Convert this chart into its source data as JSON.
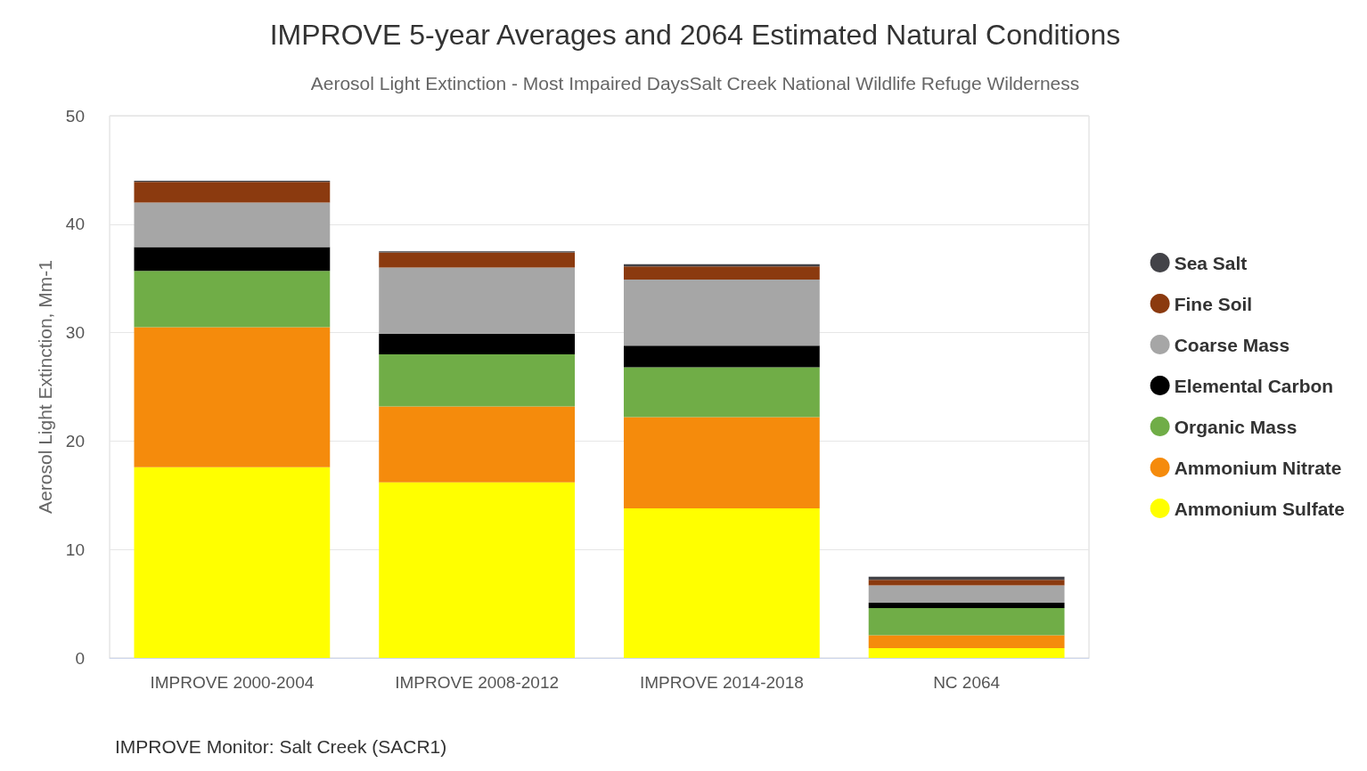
{
  "chart_data": {
    "type": "bar",
    "stacked": true,
    "title": "IMPROVE 5-year Averages and 2064 Estimated Natural Conditions",
    "subtitle": "Aerosol Light Extinction - Most Impaired DaysSalt Creek National Wildlife Refuge Wilderness",
    "ylabel": "Aerosol Light Extinction, Mm-1",
    "categories": [
      "IMPROVE 2000-2004",
      "IMPROVE 2008-2012",
      "IMPROVE 2014-2018",
      "NC 2064"
    ],
    "series": [
      {
        "name": "Ammonium Sulfate",
        "color": "#ffff00",
        "values": [
          17.6,
          16.2,
          13.8,
          0.9
        ]
      },
      {
        "name": "Ammonium Nitrate",
        "color": "#f58b0c",
        "values": [
          12.9,
          7.0,
          8.4,
          1.2
        ]
      },
      {
        "name": "Organic Mass",
        "color": "#70ad47",
        "values": [
          5.2,
          4.8,
          4.6,
          2.5
        ]
      },
      {
        "name": "Elemental Carbon",
        "color": "#000000",
        "values": [
          2.2,
          1.9,
          2.0,
          0.5
        ]
      },
      {
        "name": "Coarse Mass",
        "color": "#a6a6a6",
        "values": [
          4.1,
          6.1,
          6.1,
          1.6
        ]
      },
      {
        "name": "Fine Soil",
        "color": "#8b3a0f",
        "values": [
          1.9,
          1.4,
          1.2,
          0.5
        ]
      },
      {
        "name": "Sea Salt",
        "color": "#434348",
        "values": [
          0.1,
          0.1,
          0.2,
          0.3
        ]
      }
    ],
    "ylim": [
      0,
      50
    ],
    "yticks": [
      0,
      10,
      20,
      30,
      40,
      50
    ],
    "grid": "y",
    "legend": "right",
    "annotations": [
      "IMPROVE Monitor: Salt Creek (SACR1)"
    ]
  }
}
